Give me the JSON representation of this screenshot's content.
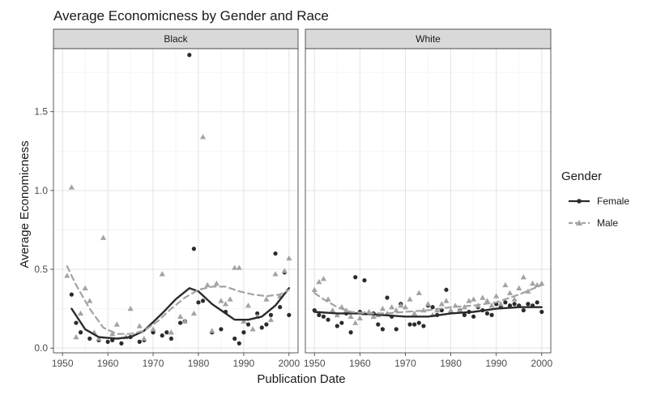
{
  "chart_data": {
    "type": "scatter",
    "title": "Average Economicness by Gender and Race",
    "xlabel": "Publication Date",
    "ylabel": "Average Economicness",
    "xlim": [
      1948,
      2002
    ],
    "ylim": [
      -0.03,
      1.9
    ],
    "x_ticks": [
      1950,
      1960,
      1970,
      1980,
      1990,
      2000
    ],
    "y_ticks": [
      0.0,
      0.5,
      1.0,
      1.5
    ],
    "x_tick_labels": [
      "1950",
      "1960",
      "1970",
      "1980",
      "1990",
      "2000"
    ],
    "y_tick_labels": [
      "0.0",
      "0.5",
      "1.0",
      "1.5"
    ],
    "grid": true,
    "legend_placement": "right",
    "legend": {
      "title": "Gender",
      "entries": [
        {
          "label": "Female",
          "color": "#2b2b2b",
          "marker": "circle",
          "line": "solid"
        },
        {
          "label": "Male",
          "color": "#a3a3a3",
          "marker": "triangle",
          "line": "dashed"
        }
      ]
    },
    "colors": {
      "female": "#2b2b2b",
      "male": "#a3a3a3",
      "panel_strip": "#d9d9d9"
    },
    "panels": [
      {
        "strip_label": "Black",
        "series": [
          {
            "name": "Female",
            "points": [
              [
                1952,
                0.34
              ],
              [
                1953,
                0.16
              ],
              [
                1954,
                0.1
              ],
              [
                1956,
                0.06
              ],
              [
                1958,
                0.05
              ],
              [
                1960,
                0.04
              ],
              [
                1961,
                0.05
              ],
              [
                1963,
                0.03
              ],
              [
                1965,
                0.07
              ],
              [
                1967,
                0.04
              ],
              [
                1968,
                0.05
              ],
              [
                1970,
                0.1
              ],
              [
                1972,
                0.08
              ],
              [
                1973,
                0.1
              ],
              [
                1974,
                0.06
              ],
              [
                1976,
                0.16
              ],
              [
                1977,
                0.17
              ],
              [
                1978,
                1.86
              ],
              [
                1979,
                0.63
              ],
              [
                1980,
                0.29
              ],
              [
                1981,
                0.3
              ],
              [
                1983,
                0.1
              ],
              [
                1985,
                0.12
              ],
              [
                1986,
                0.23
              ],
              [
                1988,
                0.06
              ],
              [
                1989,
                0.03
              ],
              [
                1990,
                0.1
              ],
              [
                1991,
                0.15
              ],
              [
                1993,
                0.22
              ],
              [
                1994,
                0.13
              ],
              [
                1995,
                0.15
              ],
              [
                1996,
                0.21
              ],
              [
                1997,
                0.6
              ],
              [
                1998,
                0.26
              ],
              [
                1999,
                0.48
              ],
              [
                2000,
                0.21
              ]
            ],
            "smooth": [
              [
                1952,
                0.25
              ],
              [
                1955,
                0.12
              ],
              [
                1958,
                0.07
              ],
              [
                1962,
                0.06
              ],
              [
                1965,
                0.07
              ],
              [
                1968,
                0.11
              ],
              [
                1972,
                0.22
              ],
              [
                1975,
                0.31
              ],
              [
                1978,
                0.38
              ],
              [
                1980,
                0.36
              ],
              [
                1983,
                0.28
              ],
              [
                1986,
                0.22
              ],
              [
                1988,
                0.18
              ],
              [
                1991,
                0.18
              ],
              [
                1994,
                0.2
              ],
              [
                1997,
                0.27
              ],
              [
                2000,
                0.38
              ]
            ]
          },
          {
            "name": "Male",
            "points": [
              [
                1951,
                0.46
              ],
              [
                1952,
                1.02
              ],
              [
                1953,
                0.07
              ],
              [
                1954,
                0.22
              ],
              [
                1955,
                0.38
              ],
              [
                1956,
                0.3
              ],
              [
                1957,
                0.1
              ],
              [
                1958,
                0.06
              ],
              [
                1959,
                0.7
              ],
              [
                1961,
                0.09
              ],
              [
                1962,
                0.15
              ],
              [
                1964,
                0.07
              ],
              [
                1965,
                0.25
              ],
              [
                1967,
                0.14
              ],
              [
                1968,
                0.06
              ],
              [
                1970,
                0.12
              ],
              [
                1972,
                0.47
              ],
              [
                1974,
                0.1
              ],
              [
                1976,
                0.2
              ],
              [
                1977,
                0.17
              ],
              [
                1979,
                0.22
              ],
              [
                1981,
                1.34
              ],
              [
                1982,
                0.4
              ],
              [
                1983,
                0.11
              ],
              [
                1984,
                0.41
              ],
              [
                1985,
                0.3
              ],
              [
                1986,
                0.28
              ],
              [
                1987,
                0.31
              ],
              [
                1988,
                0.51
              ],
              [
                1989,
                0.51
              ],
              [
                1990,
                0.17
              ],
              [
                1991,
                0.27
              ],
              [
                1992,
                0.12
              ],
              [
                1993,
                0.2
              ],
              [
                1995,
                0.31
              ],
              [
                1996,
                0.18
              ],
              [
                1997,
                0.47
              ],
              [
                1998,
                0.33
              ],
              [
                1999,
                0.49
              ],
              [
                2000,
                0.57
              ]
            ],
            "smooth": [
              [
                1951,
                0.52
              ],
              [
                1953,
                0.4
              ],
              [
                1956,
                0.25
              ],
              [
                1959,
                0.13
              ],
              [
                1962,
                0.09
              ],
              [
                1965,
                0.09
              ],
              [
                1968,
                0.11
              ],
              [
                1971,
                0.17
              ],
              [
                1974,
                0.25
              ],
              [
                1977,
                0.32
              ],
              [
                1980,
                0.37
              ],
              [
                1983,
                0.39
              ],
              [
                1986,
                0.39
              ],
              [
                1989,
                0.36
              ],
              [
                1992,
                0.34
              ],
              [
                1995,
                0.33
              ],
              [
                1998,
                0.34
              ],
              [
                2000,
                0.37
              ]
            ]
          }
        ]
      },
      {
        "strip_label": "White",
        "series": [
          {
            "name": "Female",
            "points": [
              [
                1950,
                0.24
              ],
              [
                1951,
                0.21
              ],
              [
                1952,
                0.2
              ],
              [
                1953,
                0.18
              ],
              [
                1955,
                0.14
              ],
              [
                1956,
                0.16
              ],
              [
                1957,
                0.22
              ],
              [
                1958,
                0.1
              ],
              [
                1959,
                0.45
              ],
              [
                1960,
                0.23
              ],
              [
                1961,
                0.43
              ],
              [
                1963,
                0.22
              ],
              [
                1964,
                0.15
              ],
              [
                1965,
                0.12
              ],
              [
                1966,
                0.32
              ],
              [
                1967,
                0.2
              ],
              [
                1968,
                0.12
              ],
              [
                1969,
                0.28
              ],
              [
                1971,
                0.15
              ],
              [
                1972,
                0.15
              ],
              [
                1973,
                0.16
              ],
              [
                1974,
                0.14
              ],
              [
                1975,
                0.27
              ],
              [
                1976,
                0.26
              ],
              [
                1977,
                0.21
              ],
              [
                1978,
                0.24
              ],
              [
                1979,
                0.37
              ],
              [
                1980,
                0.23
              ],
              [
                1982,
                0.24
              ],
              [
                1983,
                0.21
              ],
              [
                1984,
                0.23
              ],
              [
                1985,
                0.2
              ],
              [
                1986,
                0.26
              ],
              [
                1987,
                0.24
              ],
              [
                1988,
                0.22
              ],
              [
                1989,
                0.21
              ],
              [
                1990,
                0.28
              ],
              [
                1991,
                0.26
              ],
              [
                1992,
                0.29
              ],
              [
                1993,
                0.27
              ],
              [
                1994,
                0.28
              ],
              [
                1995,
                0.27
              ],
              [
                1996,
                0.24
              ],
              [
                1997,
                0.28
              ],
              [
                1998,
                0.27
              ],
              [
                1999,
                0.29
              ],
              [
                2000,
                0.23
              ]
            ],
            "smooth": [
              [
                1950,
                0.23
              ],
              [
                1955,
                0.22
              ],
              [
                1960,
                0.22
              ],
              [
                1965,
                0.21
              ],
              [
                1970,
                0.2
              ],
              [
                1975,
                0.2
              ],
              [
                1980,
                0.22
              ],
              [
                1985,
                0.23
              ],
              [
                1990,
                0.25
              ],
              [
                1995,
                0.26
              ],
              [
                2000,
                0.26
              ]
            ]
          },
          {
            "name": "Male",
            "points": [
              [
                1950,
                0.37
              ],
              [
                1951,
                0.42
              ],
              [
                1952,
                0.44
              ],
              [
                1953,
                0.31
              ],
              [
                1954,
                0.24
              ],
              [
                1955,
                0.21
              ],
              [
                1956,
                0.26
              ],
              [
                1957,
                0.24
              ],
              [
                1958,
                0.2
              ],
              [
                1959,
                0.16
              ],
              [
                1960,
                0.19
              ],
              [
                1961,
                0.22
              ],
              [
                1962,
                0.23
              ],
              [
                1963,
                0.2
              ],
              [
                1964,
                0.21
              ],
              [
                1965,
                0.25
              ],
              [
                1966,
                0.22
              ],
              [
                1967,
                0.26
              ],
              [
                1968,
                0.24
              ],
              [
                1969,
                0.27
              ],
              [
                1970,
                0.26
              ],
              [
                1971,
                0.31
              ],
              [
                1972,
                0.22
              ],
              [
                1973,
                0.35
              ],
              [
                1974,
                0.24
              ],
              [
                1975,
                0.28
              ],
              [
                1976,
                0.21
              ],
              [
                1977,
                0.24
              ],
              [
                1978,
                0.28
              ],
              [
                1979,
                0.3
              ],
              [
                1980,
                0.24
              ],
              [
                1981,
                0.27
              ],
              [
                1982,
                0.24
              ],
              [
                1983,
                0.26
              ],
              [
                1984,
                0.3
              ],
              [
                1985,
                0.31
              ],
              [
                1986,
                0.27
              ],
              [
                1987,
                0.32
              ],
              [
                1988,
                0.3
              ],
              [
                1989,
                0.27
              ],
              [
                1990,
                0.33
              ],
              [
                1991,
                0.28
              ],
              [
                1992,
                0.4
              ],
              [
                1993,
                0.35
              ],
              [
                1994,
                0.31
              ],
              [
                1995,
                0.38
              ],
              [
                1996,
                0.45
              ],
              [
                1997,
                0.36
              ],
              [
                1998,
                0.41
              ],
              [
                1999,
                0.4
              ],
              [
                2000,
                0.41
              ]
            ],
            "smooth": [
              [
                1950,
                0.35
              ],
              [
                1952,
                0.31
              ],
              [
                1955,
                0.26
              ],
              [
                1958,
                0.23
              ],
              [
                1962,
                0.22
              ],
              [
                1966,
                0.22
              ],
              [
                1970,
                0.23
              ],
              [
                1975,
                0.24
              ],
              [
                1980,
                0.26
              ],
              [
                1985,
                0.27
              ],
              [
                1990,
                0.29
              ],
              [
                1995,
                0.34
              ],
              [
                2000,
                0.4
              ]
            ]
          }
        ]
      }
    ]
  }
}
